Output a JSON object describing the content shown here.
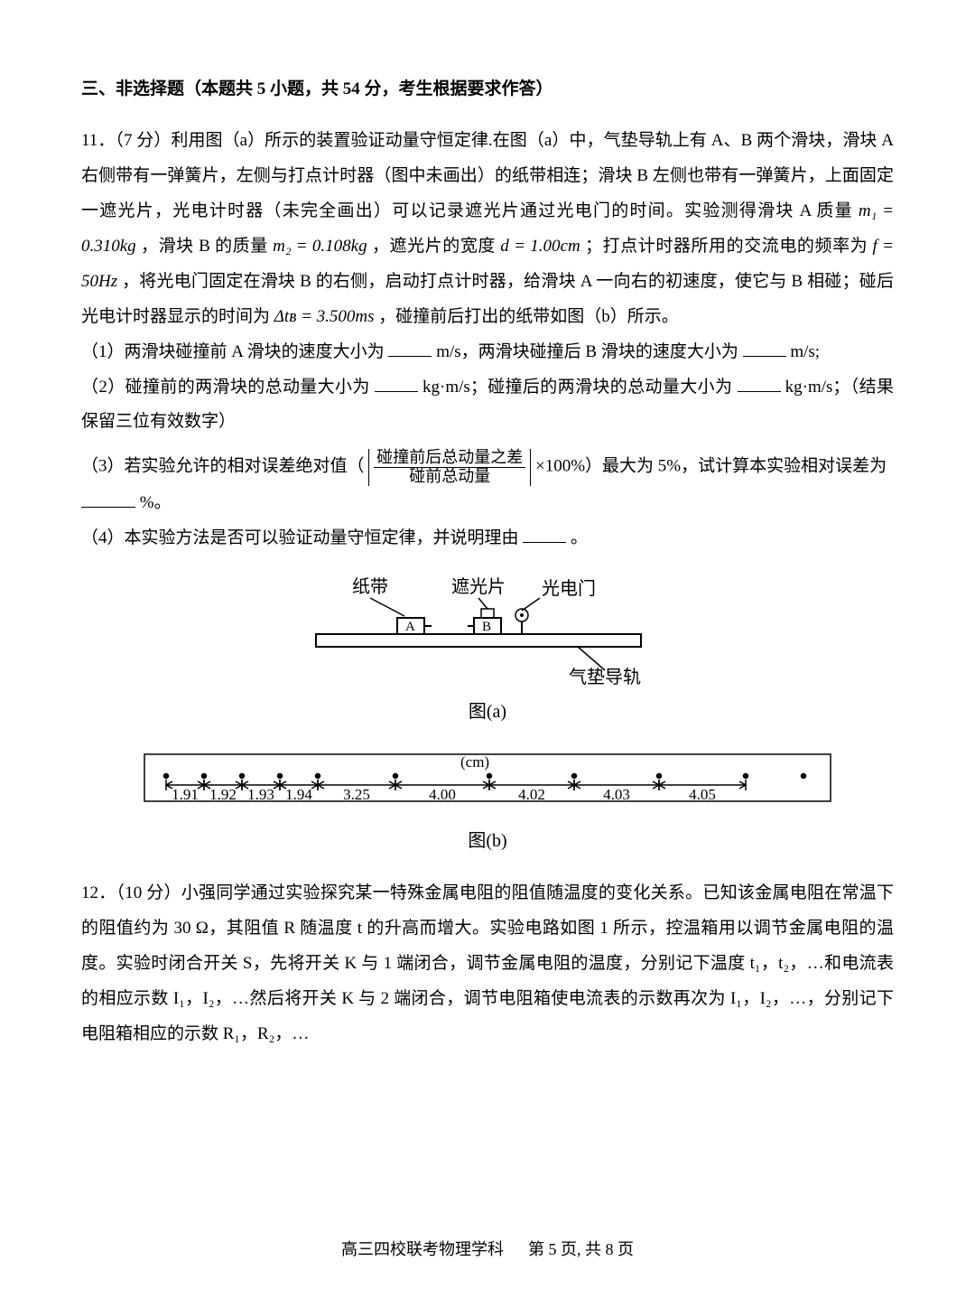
{
  "sectionTitle": "三、非选择题（本题共 5 小题，共 54 分，考生根据要求作答）",
  "q11": {
    "intro1": "11．（7 分）利用图（a）所示的装置验证动量守恒定律.在图（a）中，气垫导轨上有 A、B 两个滑块，滑块 A 右侧带有一弹簧片，左侧与打点计时器（图中未画出）的纸带相连；滑块 B 左侧也带有一弹簧片，上面固定一遮光片，光电计时器（未完全画出）可以记录遮光片通过光电门的时间。实验测得滑块 A 质量 ",
    "m1": "m₁ = 0.310kg",
    "intro2": " ，滑块 B 的质量 ",
    "m2": "m₂ = 0.108kg",
    "intro3": " ，遮光片的宽度 ",
    "d": "d = 1.00cm",
    "intro4": " ；打点计时器所用的交流电的频率为 ",
    "f": "f = 50Hz",
    "intro5": " ，将光电门固定在滑块 B 的右侧，启动打点计时器，给滑块 A 一向右的初速度，使它与 B 相碰；碰后光电计时器显示的时间为",
    "dt": "Δtʙ = 3.500ms",
    "intro6": " ，碰撞前后打出的纸带如图（b）所示。",
    "p1a": "（1）两滑块碰撞前 A 滑块的速度大小为",
    "p1b": "m/s，两滑块碰撞后 B 滑块的速度大小为",
    "p1c": "m/s;",
    "p2a": "（2）碰撞前的两滑块的总动量大小为",
    "p2b": "kg·m/s；碰撞后的两滑块的总动量大小为",
    "p2c": "kg·m/s；（结果保留三位有效数字）",
    "p3a": "（3）若实验允许的相对误差绝对值（",
    "fracNum": "碰撞前后总动量之差",
    "fracDen": "碰前总动量",
    "p3b": "×100%）最大为 5%，试计算本实验相对误差为",
    "p3c": "%。",
    "p4a": "（4）本实验方法是否可以验证动量守恒定律，并说明理由",
    "p4b": "。"
  },
  "figA": {
    "caption": "图(a)",
    "labels": {
      "tape": "纸带",
      "light": "遮光片",
      "gate": "光电门",
      "rail": "气垫导轨",
      "A": "A",
      "B": "B"
    }
  },
  "figB": {
    "caption": "图(b)",
    "unit": "(cm)",
    "values": [
      "1.91",
      "1.92",
      "1.93",
      "1.94",
      "3.25",
      "4.00",
      "4.02",
      "4.03",
      "4.05"
    ]
  },
  "q12": {
    "text": "12．（10 分）小强同学通过实验探究某一特殊金属电阻的阻值随温度的变化关系。已知该金属电阻在常温下的阻值约为 30 Ω，其阻值 R 随温度 t 的升高而增大。实验电路如图 1 所示，控温箱用以调节金属电阻的温度。实验时闭合开关 S，先将开关 K 与 1 端闭合，调节金属电阻的温度，分别记下温度 t₁，t₂，…和电流表的相应示数 I₁，I₂，…然后将开关 K 与 2 端闭合，调节电阻箱使电流表的示数再次为 I₁，I₂，…，分别记下电阻箱相应的示数 R₁，R₂，…"
  },
  "footer": {
    "subject": "高三四校联考物理学科",
    "pageA": "第 5 页,",
    "pageB": "共 8 页"
  }
}
